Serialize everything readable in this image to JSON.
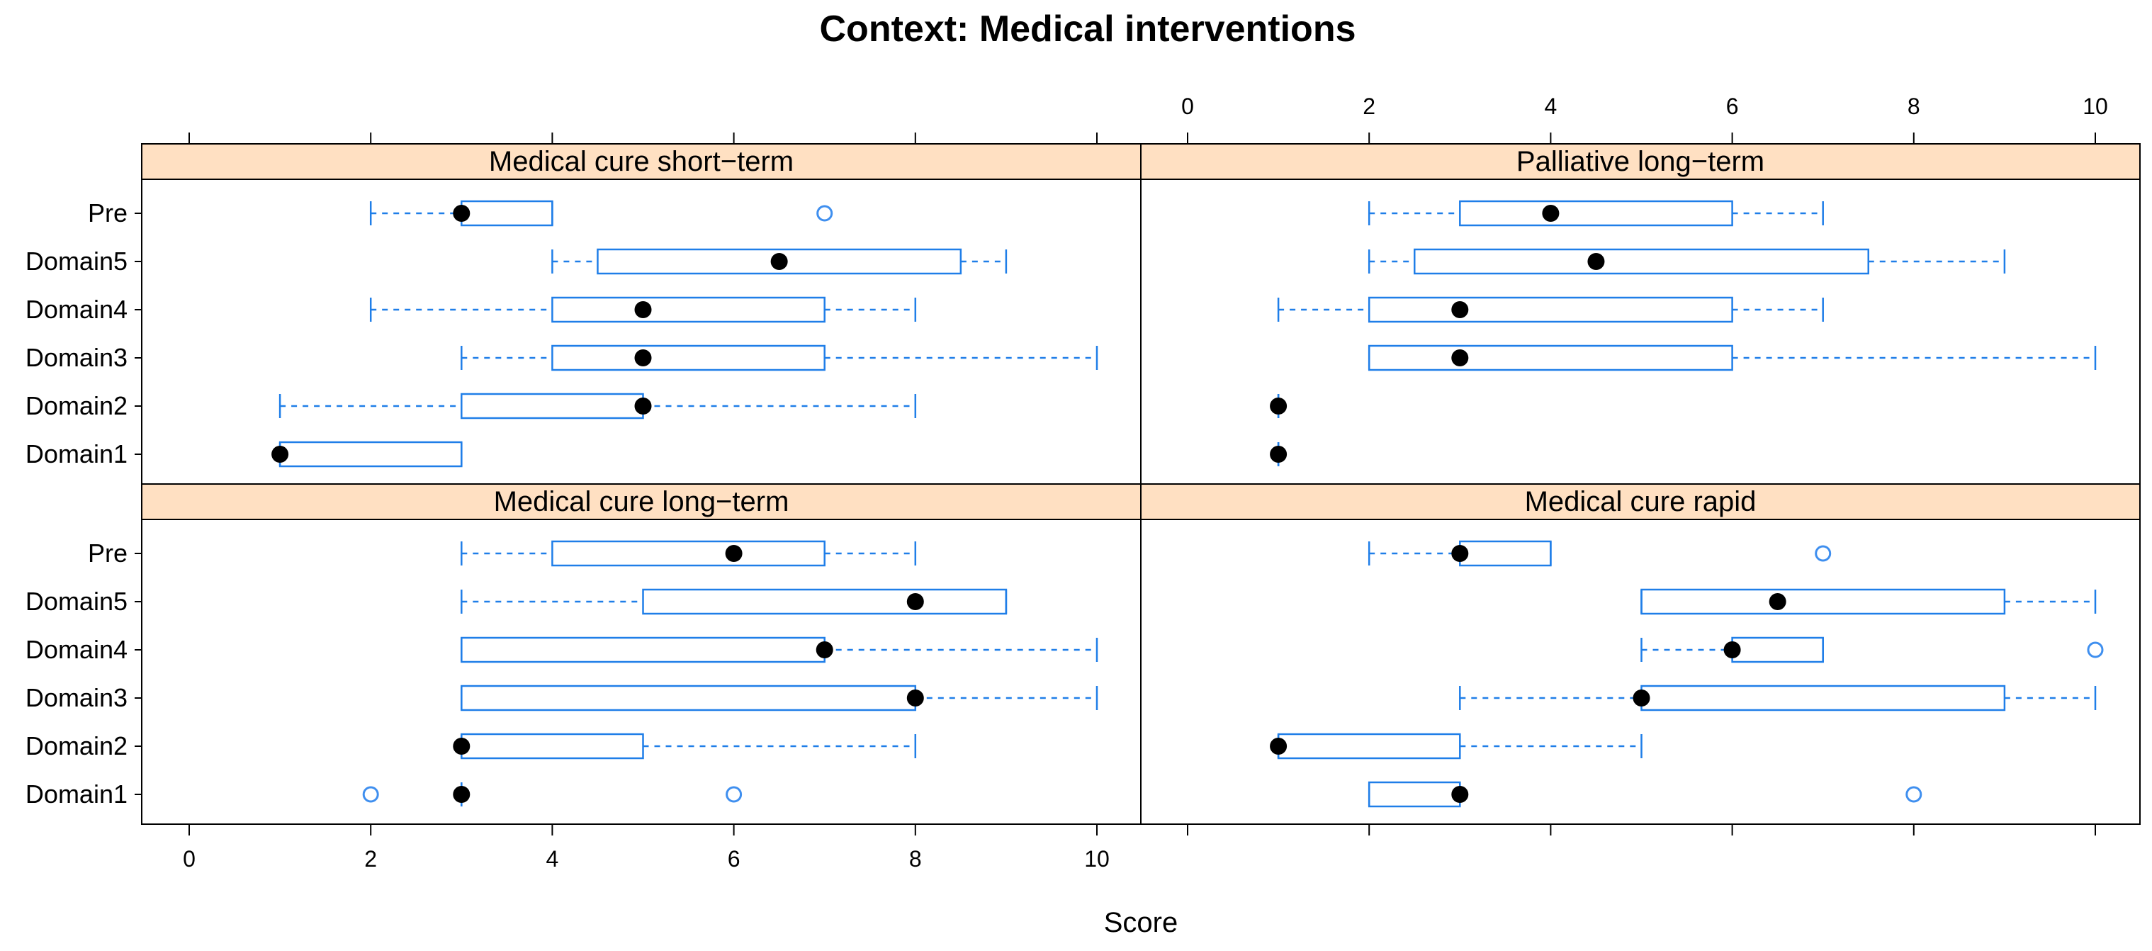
{
  "colors": {
    "box": "#1f7ee8",
    "median": "#000000",
    "outlier": "#3f8fef",
    "strip": "#ffe0c2",
    "frame": "#000000"
  },
  "chart_data": {
    "type": "boxplot",
    "title": "Context: Medical interventions",
    "xlabel": "Score",
    "xlim": [
      0,
      10
    ],
    "xticks": [
      0,
      2,
      4,
      6,
      8,
      10
    ],
    "tick_labels": [
      "0",
      "2",
      "4",
      "6",
      "8",
      "10"
    ],
    "categories": [
      "Pre",
      "Domain5",
      "Domain4",
      "Domain3",
      "Domain2",
      "Domain1"
    ],
    "panels": [
      {
        "name": "Medical cure short−term",
        "position": "top-left",
        "boxes": [
          {
            "category": "Pre",
            "whisker_low": 2,
            "q1": 3,
            "median": 3,
            "q3": 4,
            "whisker_high": 4,
            "outliers": [
              7
            ]
          },
          {
            "category": "Domain5",
            "whisker_low": 4,
            "q1": 4.5,
            "median": 6.5,
            "q3": 8.5,
            "whisker_high": 9,
            "outliers": []
          },
          {
            "category": "Domain4",
            "whisker_low": 2,
            "q1": 4,
            "median": 5,
            "q3": 7,
            "whisker_high": 8,
            "outliers": []
          },
          {
            "category": "Domain3",
            "whisker_low": 3,
            "q1": 4,
            "median": 5,
            "q3": 7,
            "whisker_high": 10,
            "outliers": []
          },
          {
            "category": "Domain2",
            "whisker_low": 1,
            "q1": 3,
            "median": 5,
            "q3": 5,
            "whisker_high": 8,
            "outliers": []
          },
          {
            "category": "Domain1",
            "whisker_low": 1,
            "q1": 1,
            "median": 1,
            "q3": 3,
            "whisker_high": 3,
            "outliers": []
          }
        ]
      },
      {
        "name": "Palliative long−term",
        "position": "top-right",
        "boxes": [
          {
            "category": "Pre",
            "whisker_low": 2,
            "q1": 3,
            "median": 4,
            "q3": 6,
            "whisker_high": 7,
            "outliers": []
          },
          {
            "category": "Domain5",
            "whisker_low": 2,
            "q1": 2.5,
            "median": 4.5,
            "q3": 7.5,
            "whisker_high": 9,
            "outliers": []
          },
          {
            "category": "Domain4",
            "whisker_low": 1,
            "q1": 2,
            "median": 3,
            "q3": 6,
            "whisker_high": 7,
            "outliers": []
          },
          {
            "category": "Domain3",
            "whisker_low": 2,
            "q1": 2,
            "median": 3,
            "q3": 6,
            "whisker_high": 10,
            "outliers": []
          },
          {
            "category": "Domain2",
            "whisker_low": 1,
            "q1": 1,
            "median": 1,
            "q3": 1,
            "whisker_high": 1,
            "outliers": []
          },
          {
            "category": "Domain1",
            "whisker_low": 1,
            "q1": 1,
            "median": 1,
            "q3": 1,
            "whisker_high": 1,
            "outliers": []
          }
        ]
      },
      {
        "name": "Medical cure long−term",
        "position": "bottom-left",
        "boxes": [
          {
            "category": "Pre",
            "whisker_low": 3,
            "q1": 4,
            "median": 6,
            "q3": 7,
            "whisker_high": 8,
            "outliers": []
          },
          {
            "category": "Domain5",
            "whisker_low": 3,
            "q1": 5,
            "median": 8,
            "q3": 9,
            "whisker_high": 9,
            "outliers": []
          },
          {
            "category": "Domain4",
            "whisker_low": 3,
            "q1": 3,
            "median": 7,
            "q3": 7,
            "whisker_high": 10,
            "outliers": []
          },
          {
            "category": "Domain3",
            "whisker_low": 3,
            "q1": 3,
            "median": 8,
            "q3": 8,
            "whisker_high": 10,
            "outliers": []
          },
          {
            "category": "Domain2",
            "whisker_low": 3,
            "q1": 3,
            "median": 3,
            "q3": 5,
            "whisker_high": 8,
            "outliers": []
          },
          {
            "category": "Domain1",
            "whisker_low": 3,
            "q1": 3,
            "median": 3,
            "q3": 3,
            "whisker_high": 3,
            "outliers": [
              2,
              6
            ]
          }
        ]
      },
      {
        "name": "Medical cure rapid",
        "position": "bottom-right",
        "boxes": [
          {
            "category": "Pre",
            "whisker_low": 2,
            "q1": 3,
            "median": 3,
            "q3": 4,
            "whisker_high": 4,
            "outliers": [
              7
            ]
          },
          {
            "category": "Domain5",
            "whisker_low": 5,
            "q1": 5,
            "median": 6.5,
            "q3": 9,
            "whisker_high": 10,
            "outliers": []
          },
          {
            "category": "Domain4",
            "whisker_low": 5,
            "q1": 6,
            "median": 6,
            "q3": 7,
            "whisker_high": 7,
            "outliers": [
              10
            ]
          },
          {
            "category": "Domain3",
            "whisker_low": 3,
            "q1": 5,
            "median": 5,
            "q3": 9,
            "whisker_high": 10,
            "outliers": []
          },
          {
            "category": "Domain2",
            "whisker_low": 1,
            "q1": 1,
            "median": 1,
            "q3": 3,
            "whisker_high": 5,
            "outliers": []
          },
          {
            "category": "Domain1",
            "whisker_low": 2,
            "q1": 2,
            "median": 3,
            "q3": 3,
            "whisker_high": 3,
            "outliers": [
              8
            ]
          }
        ]
      }
    ]
  }
}
